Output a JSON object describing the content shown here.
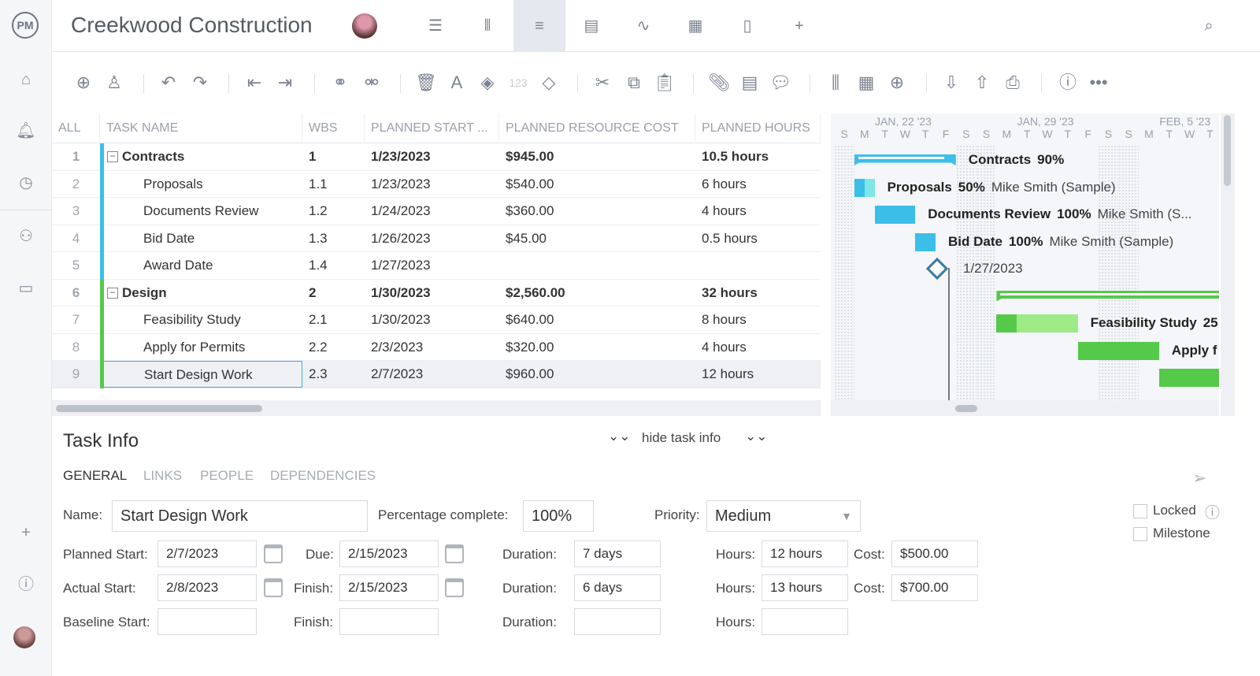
{
  "app": {
    "logo": "PM",
    "project_title": "Creekwood Construction"
  },
  "sidebar": {
    "items": [
      {
        "icon": "home-icon"
      },
      {
        "icon": "notifications-icon"
      },
      {
        "icon": "clock-icon"
      },
      {
        "icon": "people-icon"
      },
      {
        "icon": "briefcase-icon"
      },
      {
        "icon": "plus-icon"
      },
      {
        "icon": "help-icon"
      }
    ]
  },
  "views": [
    {
      "icon": "list-view-icon"
    },
    {
      "icon": "board-view-icon"
    },
    {
      "icon": "gantt-view-icon",
      "active": true
    },
    {
      "icon": "sheet-view-icon"
    },
    {
      "icon": "dashboard-view-icon"
    },
    {
      "icon": "calendar-view-icon"
    },
    {
      "icon": "files-view-icon"
    },
    {
      "icon": "add-view-icon"
    }
  ],
  "grid": {
    "headers": {
      "all": "ALL",
      "name": "TASK NAME",
      "wbs": "WBS",
      "start": "PLANNED START ...",
      "cost": "PLANNED RESOURCE COST",
      "hours": "PLANNED HOURS"
    },
    "rows": [
      {
        "n": "1",
        "name": "Contracts",
        "wbs": "1",
        "start": "1/23/2023",
        "cost": "$945.00",
        "hours": "10.5 hours",
        "summary": true,
        "color": "#3bbfe8"
      },
      {
        "n": "2",
        "name": "Proposals",
        "wbs": "1.1",
        "start": "1/23/2023",
        "cost": "$540.00",
        "hours": "6 hours",
        "color": "#3bbfe8"
      },
      {
        "n": "3",
        "name": "Documents Review",
        "wbs": "1.2",
        "start": "1/24/2023",
        "cost": "$360.00",
        "hours": "4 hours",
        "color": "#3bbfe8"
      },
      {
        "n": "4",
        "name": "Bid Date",
        "wbs": "1.3",
        "start": "1/26/2023",
        "cost": "$45.00",
        "hours": "0.5 hours",
        "color": "#3bbfe8"
      },
      {
        "n": "5",
        "name": "Award Date",
        "wbs": "1.4",
        "start": "1/27/2023",
        "cost": "",
        "hours": "",
        "color": "#3bbfe8"
      },
      {
        "n": "6",
        "name": "Design",
        "wbs": "2",
        "start": "1/30/2023",
        "cost": "$2,560.00",
        "hours": "32 hours",
        "summary": true,
        "color": "#55c94a"
      },
      {
        "n": "7",
        "name": "Feasibility Study",
        "wbs": "2.1",
        "start": "1/30/2023",
        "cost": "$640.00",
        "hours": "8 hours",
        "color": "#55c94a"
      },
      {
        "n": "8",
        "name": "Apply for Permits",
        "wbs": "2.2",
        "start": "2/3/2023",
        "cost": "$320.00",
        "hours": "4 hours",
        "color": "#55c94a"
      },
      {
        "n": "9",
        "name": "Start Design Work",
        "wbs": "2.3",
        "start": "2/7/2023",
        "cost": "$960.00",
        "hours": "12 hours",
        "color": "#55c94a",
        "selected": true
      }
    ]
  },
  "gantt": {
    "weeks": [
      "JAN, 22 '23",
      "JAN, 29 '23",
      "FEB, 5 '23"
    ],
    "days": [
      "S",
      "M",
      "T",
      "W",
      "T",
      "F",
      "S",
      "S",
      "M",
      "T",
      "W",
      "T",
      "F",
      "S",
      "S",
      "M",
      "T",
      "W",
      "T"
    ],
    "bars": [
      {
        "label": "Contracts",
        "pct": "90%",
        "start": "2023-01-23",
        "end": "2023-01-27",
        "percent": 90,
        "type": "summary",
        "color": "#3bbfe8"
      },
      {
        "label": "Proposals",
        "pct": "50%",
        "resource": "Mike Smith (Sample)",
        "start": "2023-01-23",
        "end": "2023-01-23",
        "percent": 50,
        "color": "#3bbfe8",
        "light": "#7fe6e6"
      },
      {
        "label": "Documents Review",
        "pct": "100%",
        "resource": "Mike Smith (S...",
        "start": "2023-01-24",
        "end": "2023-01-25",
        "percent": 100,
        "color": "#3bbfe8"
      },
      {
        "label": "Bid Date",
        "pct": "100%",
        "resource": "Mike Smith (Sample)",
        "start": "2023-01-26",
        "end": "2023-01-26",
        "percent": 100,
        "color": "#3bbfe8"
      },
      {
        "label": "1/27/2023",
        "start": "2023-01-27",
        "type": "milestone"
      },
      {
        "label": "",
        "start": "2023-01-30",
        "end": "2023-02-15",
        "type": "summary",
        "color": "#55c94a"
      },
      {
        "label": "Feasibility Study",
        "pct": "25",
        "start": "2023-01-30",
        "end": "2023-02-02",
        "percent": 25,
        "color": "#55c94a",
        "light": "#9deb86"
      },
      {
        "label": "Apply f",
        "start": "2023-02-03",
        "end": "2023-02-06",
        "percent": 100,
        "color": "#55c94a"
      },
      {
        "label": "",
        "start": "2023-02-07",
        "end": "2023-02-15",
        "percent": 100,
        "color": "#55c94a"
      }
    ]
  },
  "taskinfo": {
    "title": "Task Info",
    "hide": "hide task info",
    "tabs": [
      "GENERAL",
      "LINKS",
      "PEOPLE",
      "DEPENDENCIES"
    ],
    "name_label": "Name:",
    "name": "Start Design Work",
    "pct_label": "Percentage complete:",
    "pct": "100%",
    "priority_label": "Priority:",
    "priority": "Medium",
    "locked": "Locked",
    "milestone": "Milestone",
    "planned_start_label": "Planned Start:",
    "planned_start": "2/7/2023",
    "due_label": "Due:",
    "due": "2/15/2023",
    "duration_label": "Duration:",
    "planned_duration": "7 days",
    "hours_label": "Hours:",
    "planned_hours": "12 hours",
    "cost_label": "Cost:",
    "planned_cost": "$500.00",
    "actual_start_label": "Actual Start:",
    "actual_start": "2/8/2023",
    "finish_label": "Finish:",
    "actual_finish": "2/15/2023",
    "actual_duration": "6 days",
    "actual_hours": "13 hours",
    "actual_cost": "$700.00",
    "baseline_start_label": "Baseline Start:",
    "baseline_start": "",
    "baseline_finish": "",
    "baseline_duration": "",
    "baseline_hours": ""
  }
}
